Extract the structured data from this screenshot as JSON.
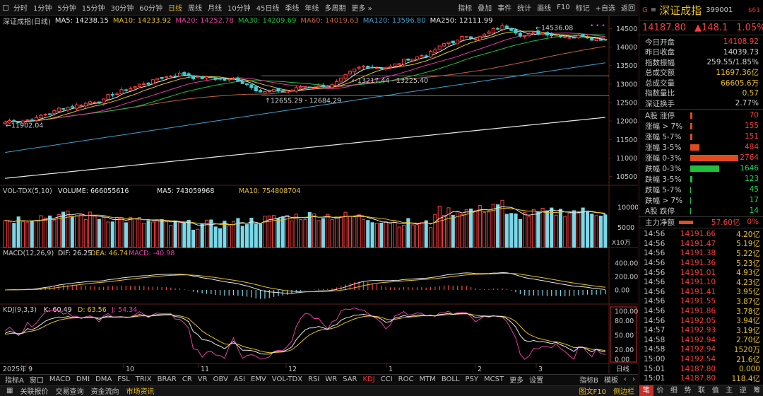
{
  "toolbar": {
    "left": [
      "分时",
      "1分钟",
      "5分钟",
      "15分钟",
      "30分钟",
      "60分钟",
      "日线",
      "周线",
      "月线",
      "10分钟",
      "45日线",
      "季线",
      "年线",
      "多周期",
      "更多 »"
    ],
    "active": "日线",
    "right": [
      "指标",
      "叠加",
      "事件",
      "统计",
      "画线",
      "F10",
      "标记",
      "+自选",
      "返回"
    ]
  },
  "main_chart": {
    "title": "深证成指(日线)",
    "ma": [
      {
        "label": "MA5: 14238.15",
        "color": "#e8e8e8"
      },
      {
        "label": "MA10: 14233.92",
        "color": "#e8c020"
      },
      {
        "label": "MA20: 14252.78",
        "color": "#e040a0"
      },
      {
        "label": "MA30: 14209.69",
        "color": "#22c040"
      },
      {
        "label": "MA60: 14019.63",
        "color": "#c06040"
      },
      {
        "label": "MA120: 13596.80",
        "color": "#40a0d0"
      },
      {
        "label": "MA250: 12111.99",
        "color": "#e8e8e8"
      }
    ],
    "y_ticks": [
      "14500",
      "14000",
      "13500",
      "13000",
      "12500",
      "12000",
      "11500",
      "11000",
      "10500"
    ],
    "annotations": {
      "low_start": "11902.04",
      "level1": "13217.44 - 13225.40",
      "level2": "12655.29 - 12684.29",
      "high": "14536.08"
    }
  },
  "volume": {
    "label": "VOL-TDX(5,10)",
    "volume": "VOLUME: 666055616",
    "ma5": "MA5: 743059968",
    "ma10": "MA10: 754808704",
    "y_ticks": [
      "10000",
      "5000"
    ],
    "unit": "X10万"
  },
  "macd": {
    "label": "MACD(12,26,9)",
    "dif": "DIF: 26.25",
    "dea": "DEA: 46.74",
    "macd": "MACD: -40.98",
    "y_ticks": [
      "400.00",
      "200.00",
      "0.00"
    ]
  },
  "kdj": {
    "label": "KDJ(9,3,3)",
    "k": "K: 60.49",
    "d": "D: 63.56",
    "j": "J: 54.34",
    "y_ticks": [
      "100.00",
      "80.00",
      "50.00",
      "20.00",
      "0.00"
    ]
  },
  "x_axis": {
    "labels": [
      "2025年",
      "9",
      "10",
      "11",
      "12",
      "1",
      "2",
      "3"
    ],
    "period": "日线"
  },
  "indicator_tabs": {
    "items": [
      "指标A",
      "窗口",
      "MACD",
      "DMI",
      "DMA",
      "FSL",
      "TRIX",
      "BRAR",
      "CR",
      "VR",
      "OBV",
      "ASI",
      "EMV",
      "VOL-TDX",
      "RSI",
      "WR",
      "SAR",
      "KDJ",
      "CCI",
      "ROC",
      "MTM",
      "BOLL",
      "PSY",
      "MCST",
      "更多",
      "设置"
    ],
    "active": "KDJ",
    "right": [
      "指标B",
      "模板"
    ]
  },
  "status_bar": {
    "items": [
      "关联报价",
      "交易查询",
      "资金流向",
      "市场资讯"
    ],
    "highlight": "市场资讯",
    "right": [
      "图文F10",
      "侧边栏"
    ]
  },
  "quote": {
    "g": "G",
    "menu": "≡",
    "name": "深证成指",
    "code": "399001",
    "signal": "$61",
    "price": "14187.80",
    "change": "▲148.1",
    "pct": "1.05%",
    "fields": [
      {
        "k": "今日开盘",
        "v": "14108.92",
        "c": "red"
      },
      {
        "k": "昨日收盘",
        "v": "14039.73",
        "c": ""
      },
      {
        "k": "指数振幅",
        "v": "259.55/1.85%",
        "c": ""
      },
      {
        "k": "总成交额",
        "v": "11697.36亿",
        "c": "yel"
      },
      {
        "k": "总成交量",
        "v": "66605.6万",
        "c": "yel"
      },
      {
        "k": "指数量比",
        "v": "0.57",
        "c": "yel"
      },
      {
        "k": "深证换手",
        "v": "2.77%",
        "c": ""
      }
    ],
    "distribution": [
      {
        "k": "A股 涨停",
        "v": "70",
        "w": 3,
        "c": "red"
      },
      {
        "k": "涨幅 > 7%",
        "v": "155",
        "w": 3,
        "c": "red"
      },
      {
        "k": "涨幅 5-7%",
        "v": "151",
        "w": 3,
        "c": "red"
      },
      {
        "k": "涨幅 3-5%",
        "v": "484",
        "w": 13,
        "c": "red"
      },
      {
        "k": "涨幅 0-3%",
        "v": "2764",
        "w": 68,
        "c": "red"
      },
      {
        "k": "跌幅 0-3%",
        "v": "1646",
        "w": 41,
        "c": "green"
      },
      {
        "k": "跌幅 3-5%",
        "v": "123",
        "w": 3,
        "c": "green"
      },
      {
        "k": "跌幅 5-7%",
        "v": "45",
        "w": 1,
        "c": "green"
      },
      {
        "k": "跌幅 > 7%",
        "v": "17",
        "w": 1,
        "c": "green"
      },
      {
        "k": "A股 跌停",
        "v": "14",
        "w": 1,
        "c": "green"
      }
    ],
    "main_flow": {
      "k": "主力净额",
      "v": "57.60亿",
      "p": "0%"
    },
    "ticks": [
      {
        "t": "14:56",
        "p": "14191.66",
        "q": "4.20亿"
      },
      {
        "t": "14:56",
        "p": "14191.47",
        "q": "5.19亿"
      },
      {
        "t": "14:56",
        "p": "14191.38",
        "q": "5.22亿"
      },
      {
        "t": "14:56",
        "p": "14191.36",
        "q": "5.23亿"
      },
      {
        "t": "14:56",
        "p": "14191.01",
        "q": "4.93亿"
      },
      {
        "t": "14:56",
        "p": "14191.10",
        "q": "4.23亿"
      },
      {
        "t": "14:56",
        "p": "14191.41",
        "q": "3.95亿"
      },
      {
        "t": "14:56",
        "p": "14191.55",
        "q": "3.87亿"
      },
      {
        "t": "14:56",
        "p": "14191.86",
        "q": "3.78亿"
      },
      {
        "t": "14:56",
        "p": "14192.05",
        "q": "3.94亿"
      },
      {
        "t": "14:57",
        "p": "14192.93",
        "q": "3.19亿"
      },
      {
        "t": "14:58",
        "p": "14192.94",
        "q": "2.70亿"
      },
      {
        "t": "14:58",
        "p": "14192.94",
        "q": "1520万"
      },
      {
        "t": "15:00",
        "p": "14192.54",
        "q": "21.6亿"
      },
      {
        "t": "15:01",
        "p": "14187.80",
        "q": "0.000"
      },
      {
        "t": "15:01",
        "p": "14187.80",
        "q": "118.4亿"
      }
    ],
    "bottom_tabs": [
      "笔",
      "价",
      "细",
      "势",
      "联",
      "值",
      "主",
      "逆",
      "筹"
    ],
    "bottom_active": "笔"
  }
}
